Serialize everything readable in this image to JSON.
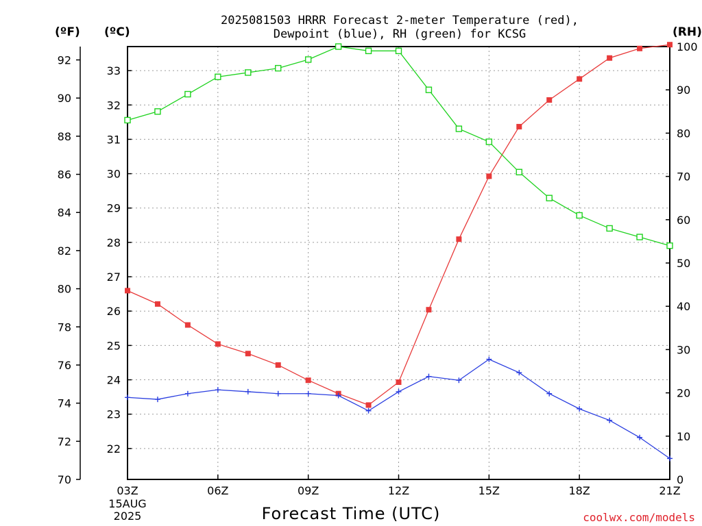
{
  "title_line1": "2025081503 HRRR Forecast 2-meter Temperature (red),",
  "title_line2": "Dewpoint (blue), RH (green) for KCSG",
  "credit": "coolwx.com/models",
  "colors": {
    "temperature": "#e83a3a",
    "dewpoint": "#2a3ee0",
    "rh": "#1ed21e"
  },
  "chart_data": {
    "type": "line",
    "xlabel": "Forecast Time (UTC)",
    "x_tick_labels": [
      "03Z",
      "06Z",
      "09Z",
      "12Z",
      "15Z",
      "18Z",
      "21Z"
    ],
    "x_date_lines": [
      "15AUG",
      "2025"
    ],
    "x": [
      "03Z",
      "04Z",
      "05Z",
      "06Z",
      "07Z",
      "08Z",
      "09Z",
      "10Z",
      "11Z",
      "12Z",
      "13Z",
      "14Z",
      "15Z",
      "16Z",
      "17Z",
      "18Z",
      "19Z",
      "20Z",
      "21Z"
    ],
    "axes": {
      "left_f": {
        "label": "(ºF)",
        "range": [
          70,
          92.7
        ],
        "ticks": [
          "70",
          "72",
          "74",
          "76",
          "78",
          "80",
          "82",
          "84",
          "86",
          "88",
          "90",
          "92"
        ]
      },
      "left_c": {
        "label": "(ºC)",
        "range": [
          21.1,
          33.7
        ],
        "ticks": [
          "22",
          "23",
          "24",
          "25",
          "26",
          "27",
          "28",
          "29",
          "30",
          "31",
          "32",
          "33"
        ]
      },
      "right_rh": {
        "label": "(RH)",
        "range": [
          0,
          100
        ],
        "ticks": [
          "0",
          "10",
          "20",
          "30",
          "40",
          "50",
          "60",
          "70",
          "80",
          "90",
          "100"
        ]
      }
    },
    "grid": true,
    "series": [
      {
        "name": "2-meter Temperature (red)",
        "axis": "left_f",
        "marker": "filled-square",
        "values": [
          79.9,
          79.2,
          78.1,
          77.1,
          76.6,
          76.0,
          75.2,
          74.5,
          73.9,
          75.1,
          78.9,
          82.6,
          85.9,
          88.5,
          89.9,
          91.0,
          92.1,
          92.6,
          92.8
        ]
      },
      {
        "name": "Dewpoint (blue)",
        "axis": "left_f",
        "marker": "plus",
        "values": [
          74.3,
          74.2,
          74.5,
          74.7,
          74.6,
          74.5,
          74.5,
          74.4,
          73.6,
          74.6,
          75.4,
          75.2,
          76.3,
          75.6,
          74.5,
          73.7,
          73.1,
          72.2,
          71.1
        ]
      },
      {
        "name": "RH (green)",
        "axis": "right_rh",
        "marker": "open-square",
        "values": [
          83,
          85,
          89,
          93,
          94,
          95,
          97,
          100,
          99,
          99,
          90,
          81,
          78,
          71,
          65,
          61,
          58,
          56,
          54
        ]
      }
    ]
  }
}
